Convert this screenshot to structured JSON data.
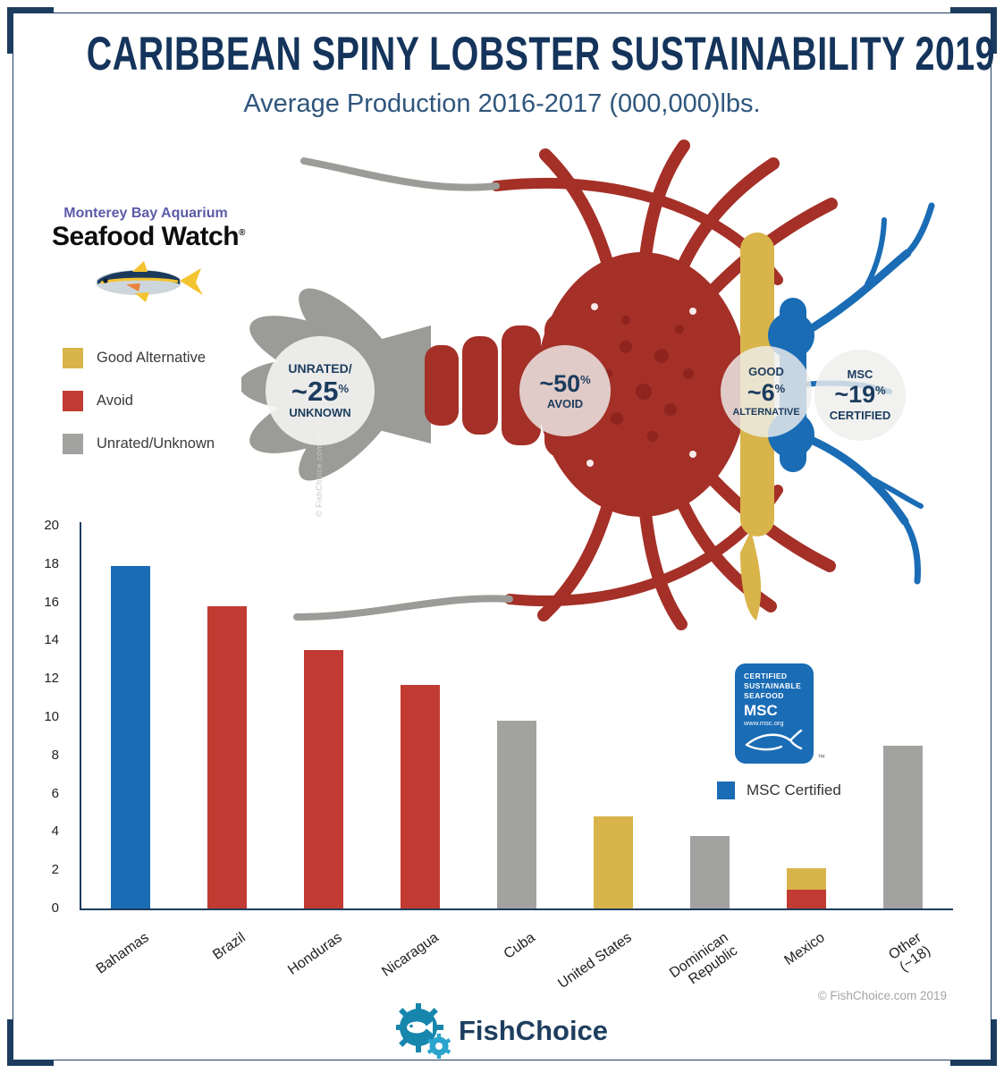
{
  "title": "CARIBBEAN SPINY LOBSTER SUSTAINABILITY 2019",
  "subtitle": "Average Production 2016-2017 (000,000)lbs.",
  "seafood_watch": {
    "brand": "Monterey Bay Aquarium",
    "name": "Seafood Watch",
    "trademark": "®"
  },
  "rating_legend": [
    {
      "label": "Good Alternative",
      "color": "#D9B44A"
    },
    {
      "label": "Avoid",
      "color": "#C23B33"
    },
    {
      "label": "Unrated/Unknown",
      "color": "#A2A2A0"
    }
  ],
  "lobster_badges": [
    {
      "top_label": "UNRATED/",
      "value": "~25",
      "percent": "%",
      "bottom_label": "UNKNOWN"
    },
    {
      "top_label": "",
      "value": "~50",
      "percent": "%",
      "bottom_label": "AVOID"
    },
    {
      "top_label": "GOOD",
      "value": "~6",
      "percent": "%",
      "bottom_label": "ALTERNATIVE"
    },
    {
      "top_label": "MSC",
      "value": "~19",
      "percent": "%",
      "bottom_label": "CERTIFIED"
    }
  ],
  "watermark": "© FishChoice.com 2019",
  "chart_data": {
    "type": "bar",
    "title": "Caribbean Spiny Lobster Average Production 2016-2017 (000,000)lbs.",
    "xlabel": "",
    "ylabel": "",
    "ylim": [
      0,
      20
    ],
    "ytick_step": 2,
    "grid": false,
    "categories": [
      "Bahamas",
      "Brazil",
      "Honduras",
      "Nicaragua",
      "Cuba",
      "United States",
      "Dominican\nRepublic",
      "Mexico",
      "Other (~18)"
    ],
    "bars": [
      {
        "label": "Bahamas",
        "total": 17.9,
        "segments": [
          {
            "value": 17.9,
            "rating": "msc_certified"
          }
        ]
      },
      {
        "label": "Brazil",
        "total": 15.8,
        "segments": [
          {
            "value": 15.8,
            "rating": "avoid"
          }
        ]
      },
      {
        "label": "Honduras",
        "total": 13.5,
        "segments": [
          {
            "value": 13.5,
            "rating": "avoid"
          }
        ]
      },
      {
        "label": "Nicaragua",
        "total": 11.7,
        "segments": [
          {
            "value": 11.7,
            "rating": "avoid"
          }
        ]
      },
      {
        "label": "Cuba",
        "total": 9.8,
        "segments": [
          {
            "value": 9.8,
            "rating": "unrated"
          }
        ]
      },
      {
        "label": "United States",
        "total": 4.8,
        "segments": [
          {
            "value": 4.8,
            "rating": "good_alternative"
          }
        ]
      },
      {
        "label": "Dominican\nRepublic",
        "total": 3.8,
        "segments": [
          {
            "value": 3.8,
            "rating": "unrated"
          }
        ]
      },
      {
        "label": "Mexico",
        "total": 2.1,
        "segments": [
          {
            "value": 1.0,
            "rating": "avoid"
          },
          {
            "value": 1.1,
            "rating": "good_alternative"
          }
        ]
      },
      {
        "label": "Other (~18)",
        "total": 8.5,
        "segments": [
          {
            "value": 8.5,
            "rating": "unrated"
          }
        ]
      }
    ],
    "colors": {
      "msc_certified": "#1A6CB5",
      "avoid": "#C23B33",
      "good_alternative": "#D9B44A",
      "unrated": "#A2A2A0"
    },
    "legend_position": "right"
  },
  "msc_logo": {
    "lines": [
      "CERTIFIED",
      "SUSTAINABLE",
      "SEAFOOD"
    ],
    "name": "MSC",
    "url": "www.msc.org",
    "tm": "™",
    "color": "#1A6CB5"
  },
  "msc_legend": {
    "label": "MSC Certified",
    "color": "#1A6CB5"
  },
  "footer": {
    "logo_text": "FishChoice",
    "copyright": "© FishChoice.com 2019"
  }
}
